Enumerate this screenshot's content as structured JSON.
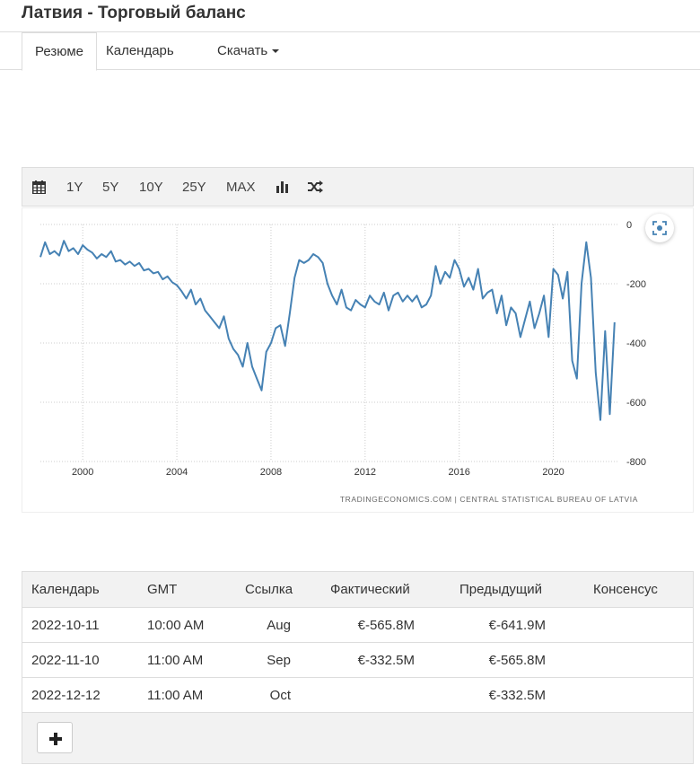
{
  "header": {
    "title": "Латвия - Торговый баланс"
  },
  "tabs": [
    {
      "label": "Резюме",
      "active": true
    },
    {
      "label": "Календарь",
      "active": false
    },
    {
      "label": "Скачать",
      "active": false
    }
  ],
  "toolbar": {
    "calendar_icon": "calendar-icon",
    "ranges": [
      "1Y",
      "5Y",
      "10Y",
      "25Y",
      "MAX"
    ],
    "bar_icon": "bar-chart-icon",
    "shuffle_icon": "shuffle-icon"
  },
  "chart_data": {
    "type": "line",
    "series_color": "#4682b4",
    "xlim": [
      1998.2,
      2022.8
    ],
    "ylim": [
      -800,
      0
    ],
    "xticks": [
      2000,
      2004,
      2008,
      2012,
      2016,
      2020
    ],
    "xtick_labels": [
      "2000",
      "2004",
      "2008",
      "2012",
      "2016",
      "2020"
    ],
    "yticks": [
      0,
      -200,
      -400,
      -600,
      -800
    ],
    "ytick_labels": [
      "0",
      "-200",
      "-400",
      "-600",
      "-800"
    ],
    "grid": true,
    "source": "TRADINGECONOMICS.COM  |  CENTRAL STATISTICAL BUREAU OF LATVIA",
    "x": [
      1998.2,
      1998.4,
      1998.6,
      1998.8,
      1999.0,
      1999.2,
      1999.4,
      1999.6,
      1999.8,
      2000.0,
      2000.2,
      2000.4,
      2000.6,
      2000.8,
      2001.0,
      2001.2,
      2001.4,
      2001.6,
      2001.8,
      2002.0,
      2002.2,
      2002.4,
      2002.6,
      2002.8,
      2003.0,
      2003.2,
      2003.4,
      2003.6,
      2003.8,
      2004.0,
      2004.2,
      2004.4,
      2004.6,
      2004.8,
      2005.0,
      2005.2,
      2005.4,
      2005.6,
      2005.8,
      2006.0,
      2006.2,
      2006.4,
      2006.6,
      2006.8,
      2007.0,
      2007.2,
      2007.4,
      2007.6,
      2007.8,
      2008.0,
      2008.2,
      2008.4,
      2008.6,
      2008.8,
      2009.0,
      2009.2,
      2009.4,
      2009.6,
      2009.8,
      2010.0,
      2010.2,
      2010.4,
      2010.6,
      2010.8,
      2011.0,
      2011.2,
      2011.4,
      2011.6,
      2011.8,
      2012.0,
      2012.2,
      2012.4,
      2012.6,
      2012.8,
      2013.0,
      2013.2,
      2013.4,
      2013.6,
      2013.8,
      2014.0,
      2014.2,
      2014.4,
      2014.6,
      2014.8,
      2015.0,
      2015.2,
      2015.4,
      2015.6,
      2015.8,
      2016.0,
      2016.2,
      2016.4,
      2016.6,
      2016.8,
      2017.0,
      2017.2,
      2017.4,
      2017.6,
      2017.8,
      2018.0,
      2018.2,
      2018.4,
      2018.6,
      2018.8,
      2019.0,
      2019.2,
      2019.4,
      2019.6,
      2019.8,
      2020.0,
      2020.2,
      2020.4,
      2020.6,
      2020.8,
      2021.0,
      2021.2,
      2021.4,
      2021.6,
      2021.8,
      2022.0,
      2022.2,
      2022.4,
      2022.6
    ],
    "values": [
      -110,
      -60,
      -100,
      -90,
      -105,
      -55,
      -90,
      -80,
      -100,
      -70,
      -85,
      -95,
      -115,
      -100,
      -110,
      -90,
      -125,
      -120,
      -135,
      -125,
      -140,
      -130,
      -155,
      -150,
      -165,
      -160,
      -185,
      -175,
      -195,
      -205,
      -225,
      -250,
      -220,
      -270,
      -250,
      -290,
      -310,
      -330,
      -350,
      -310,
      -385,
      -420,
      -440,
      -480,
      -400,
      -480,
      -520,
      -560,
      -430,
      -400,
      -350,
      -340,
      -410,
      -300,
      -180,
      -120,
      -130,
      -120,
      -100,
      -110,
      -130,
      -200,
      -240,
      -270,
      -220,
      -280,
      -290,
      -255,
      -270,
      -280,
      -240,
      -260,
      -270,
      -230,
      -290,
      -240,
      -230,
      -260,
      -240,
      -260,
      -240,
      -280,
      -270,
      -240,
      -140,
      -200,
      -160,
      -180,
      -120,
      -150,
      -210,
      -180,
      -220,
      -150,
      -250,
      -230,
      -220,
      -300,
      -240,
      -340,
      -280,
      -300,
      -380,
      -320,
      -260,
      -350,
      -300,
      -240,
      -380,
      -150,
      -170,
      -250,
      -160,
      -460,
      -520,
      -200,
      -60,
      -180,
      -500,
      -660,
      -360,
      -640,
      -330
    ]
  },
  "calendar_table": {
    "columns": [
      "Календарь",
      "GMT",
      "Ссылка",
      "Фактический",
      "Предыдущий",
      "Консенсус"
    ],
    "rows": [
      {
        "date": "2022-10-11",
        "time": "10:00 AM",
        "ref": "Aug",
        "actual": "€-565.8M",
        "previous": "€-641.9M",
        "consensus": ""
      },
      {
        "date": "2022-11-10",
        "time": "11:00 AM",
        "ref": "Sep",
        "actual": "€-332.5M",
        "previous": "€-565.8M",
        "consensus": ""
      },
      {
        "date": "2022-12-12",
        "time": "11:00 AM",
        "ref": "Oct",
        "actual": "",
        "previous": "€-332.5M",
        "consensus": ""
      }
    ],
    "add_icon": "plus-icon"
  }
}
